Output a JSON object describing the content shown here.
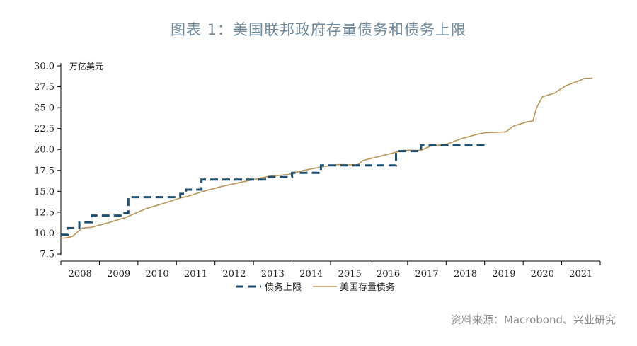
{
  "header": {
    "title": "图表 1：美国联邦政府存量债务和债务上限"
  },
  "footer": {
    "source": "资料来源：Macrobond、兴业研究"
  },
  "colors": {
    "limit": "#1f4e6e",
    "debt": "#b8955a",
    "axis": "#000000",
    "title": "#6f8a9c"
  },
  "chart_data": {
    "type": "line",
    "title": "图表 1：美国联邦政府存量债务和债务上限",
    "ylabel": "万亿美元",
    "xlabel": "",
    "ylim": [
      7.5,
      30.0
    ],
    "xlim": [
      2008.0,
      2022.0
    ],
    "grid": false,
    "legend_position": "bottom",
    "yticks": [
      "30.0",
      "27.5",
      "25.0",
      "22.5",
      "20.0",
      "17.5",
      "15.0",
      "12.5",
      "10.0",
      "7.5"
    ],
    "categories": [
      "2008",
      "2009",
      "2010",
      "2011",
      "2012",
      "2013",
      "2014",
      "2015",
      "2016",
      "2017",
      "2018",
      "2019",
      "2020",
      "2021"
    ],
    "series": [
      {
        "name": "债务上限",
        "style": "dashed-step",
        "points": [
          [
            2008.0,
            9.8
          ],
          [
            2008.18,
            9.8
          ],
          [
            2008.18,
            10.6
          ],
          [
            2008.48,
            10.6
          ],
          [
            2008.48,
            11.3
          ],
          [
            2008.8,
            11.3
          ],
          [
            2008.8,
            12.1
          ],
          [
            2009.65,
            12.1
          ],
          [
            2009.65,
            12.4
          ],
          [
            2009.75,
            12.4
          ],
          [
            2009.75,
            14.3
          ],
          [
            2011.1,
            14.3
          ],
          [
            2011.1,
            14.7
          ],
          [
            2011.25,
            14.7
          ],
          [
            2011.25,
            15.2
          ],
          [
            2011.65,
            15.2
          ],
          [
            2011.65,
            16.4
          ],
          [
            2013.3,
            16.4
          ],
          [
            2013.3,
            16.7
          ],
          [
            2014.0,
            16.7
          ],
          [
            2014.0,
            17.2
          ],
          [
            2014.75,
            17.2
          ],
          [
            2014.75,
            18.1
          ],
          [
            2016.7,
            18.1
          ],
          [
            2016.7,
            19.8
          ],
          [
            2017.35,
            19.8
          ],
          [
            2017.35,
            20.5
          ],
          [
            2019.1,
            20.5
          ]
        ]
      },
      {
        "name": "美国存量债务",
        "style": "solid",
        "points": [
          [
            2008.0,
            9.4
          ],
          [
            2008.1,
            9.4
          ],
          [
            2008.3,
            9.6
          ],
          [
            2008.45,
            10.2
          ],
          [
            2008.55,
            10.6
          ],
          [
            2008.8,
            10.7
          ],
          [
            2009.2,
            11.2
          ],
          [
            2009.7,
            11.9
          ],
          [
            2010.2,
            12.9
          ],
          [
            2010.7,
            13.6
          ],
          [
            2011.1,
            14.2
          ],
          [
            2011.3,
            14.4
          ],
          [
            2011.7,
            15.0
          ],
          [
            2012.2,
            15.6
          ],
          [
            2012.7,
            16.1
          ],
          [
            2013.0,
            16.4
          ],
          [
            2013.4,
            16.8
          ],
          [
            2013.9,
            17.0
          ],
          [
            2014.3,
            17.5
          ],
          [
            2014.75,
            17.9
          ],
          [
            2015.2,
            18.2
          ],
          [
            2015.7,
            18.15
          ],
          [
            2015.85,
            18.7
          ],
          [
            2016.3,
            19.2
          ],
          [
            2016.9,
            19.9
          ],
          [
            2017.35,
            19.9
          ],
          [
            2017.6,
            20.4
          ],
          [
            2018.0,
            20.6
          ],
          [
            2018.4,
            21.3
          ],
          [
            2018.8,
            21.8
          ],
          [
            2019.0,
            22.0
          ],
          [
            2019.55,
            22.1
          ],
          [
            2019.75,
            22.8
          ],
          [
            2020.1,
            23.3
          ],
          [
            2020.25,
            23.4
          ],
          [
            2020.35,
            25.0
          ],
          [
            2020.5,
            26.3
          ],
          [
            2020.8,
            26.7
          ],
          [
            2021.1,
            27.6
          ],
          [
            2021.5,
            28.3
          ],
          [
            2021.6,
            28.5
          ],
          [
            2021.8,
            28.5
          ]
        ]
      }
    ]
  }
}
